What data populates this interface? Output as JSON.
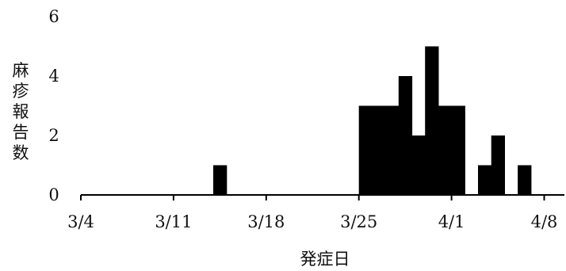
{
  "chart_data": {
    "type": "bar",
    "title": "",
    "xlabel": "発症日",
    "ylabel": "麻疹報告数",
    "ylim": [
      0,
      6
    ],
    "yticks": [
      "0",
      "2",
      "4",
      "6"
    ],
    "xticks": [
      "3/4",
      "3/11",
      "3/18",
      "3/25",
      "4/1",
      "4/8"
    ],
    "grid": false,
    "legend": "none",
    "bar_color": "#000000",
    "x_unit": "day offset from 3/4",
    "bars": [
      {
        "date": "3/14",
        "value": 1
      },
      {
        "date": "3/25",
        "value": 3
      },
      {
        "date": "3/26",
        "value": 3
      },
      {
        "date": "3/27",
        "value": 3
      },
      {
        "date": "3/28",
        "value": 4
      },
      {
        "date": "3/29",
        "value": 2
      },
      {
        "date": "3/30",
        "value": 5
      },
      {
        "date": "3/31",
        "value": 3
      },
      {
        "date": "4/1",
        "value": 3
      },
      {
        "date": "4/3",
        "value": 1
      },
      {
        "date": "4/4",
        "value": 2
      },
      {
        "date": "4/6",
        "value": 1
      }
    ]
  }
}
